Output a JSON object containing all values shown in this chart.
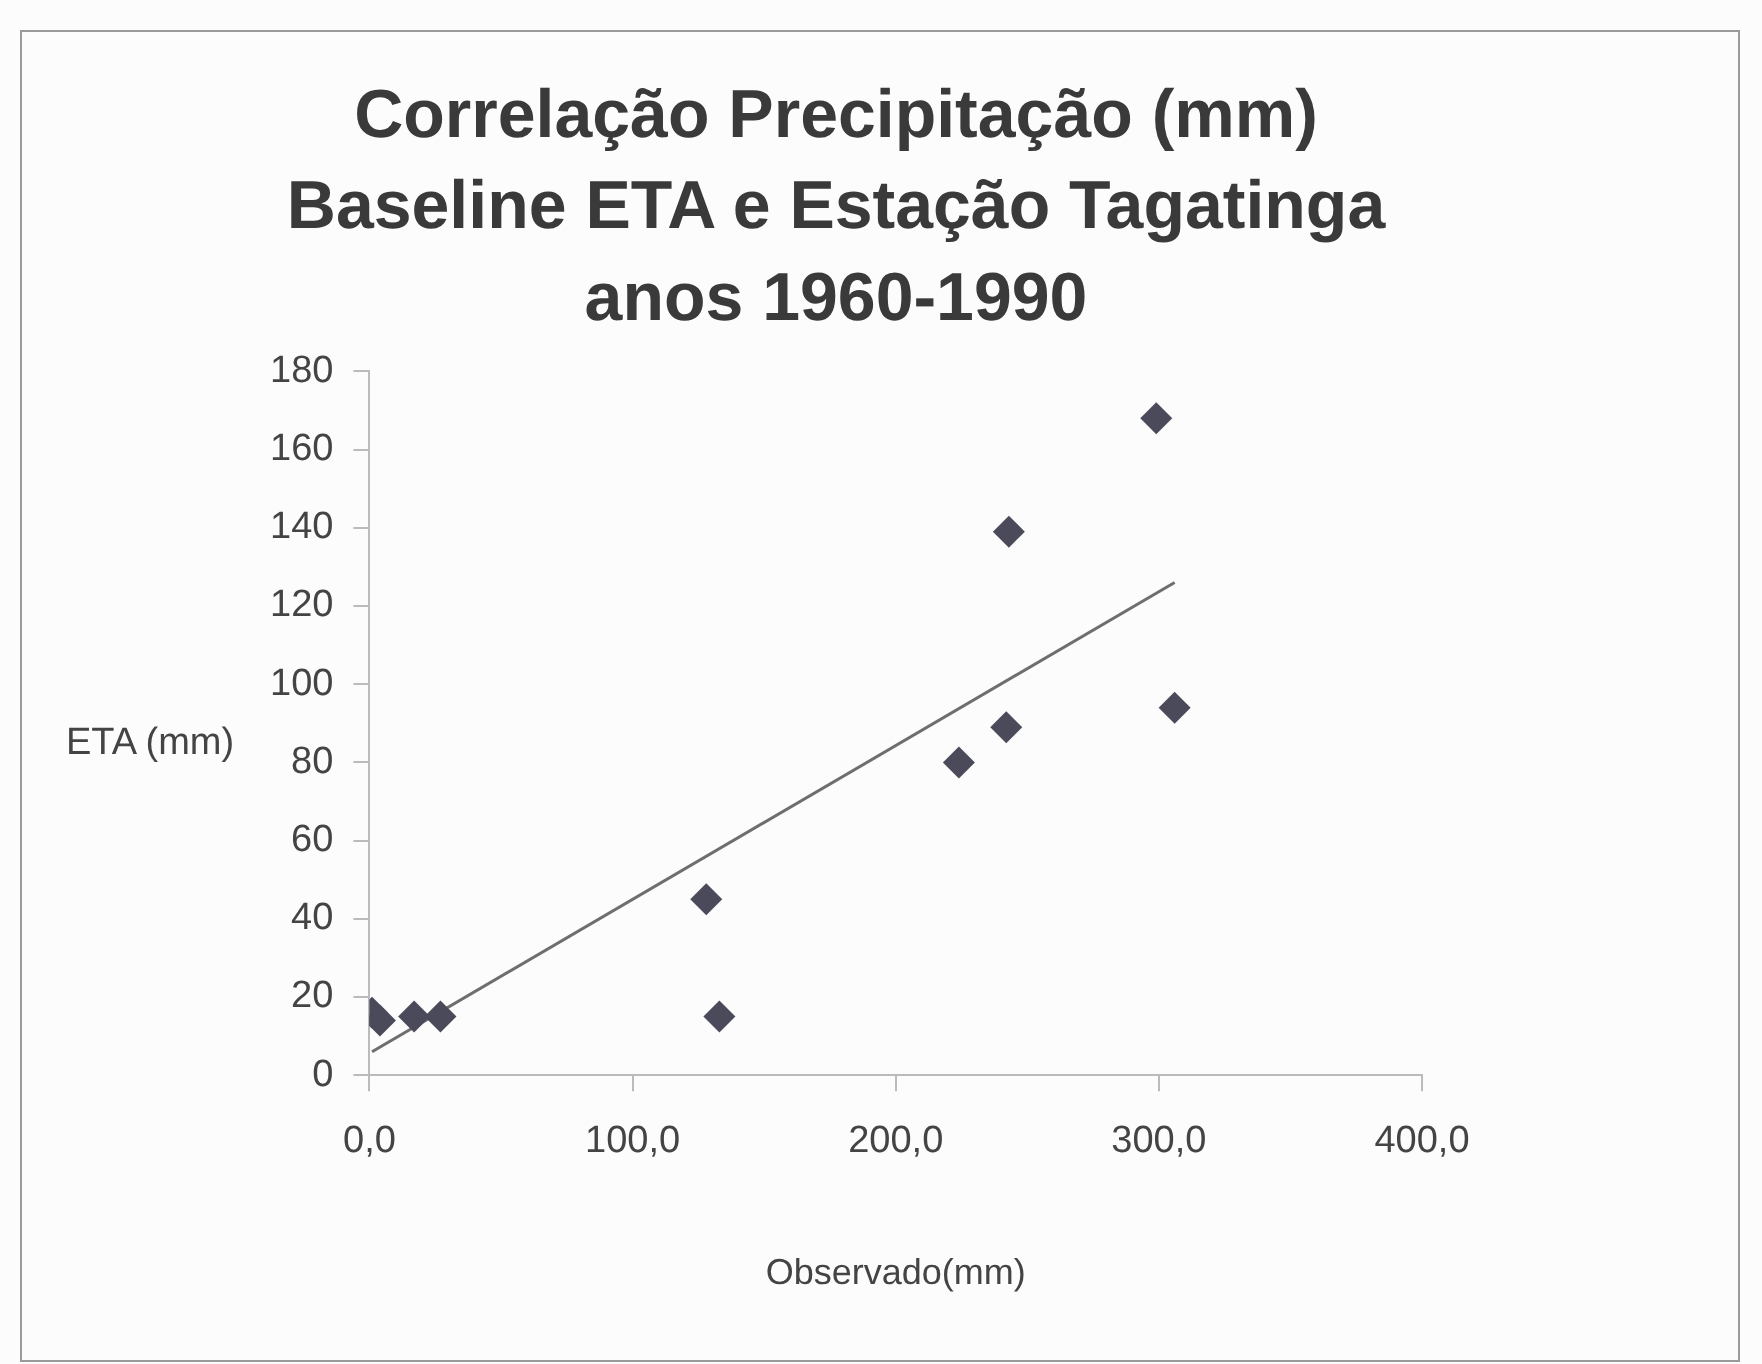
{
  "chart_data": {
    "type": "scatter",
    "title": "Correlação Precipitação (mm)\nBaseline ETA e Estação Tagatinga\nanos 1960-1990",
    "xlabel": "Observado(mm)",
    "ylabel": "ETA (mm)",
    "series": [
      {
        "color": "#4a4a5a",
        "x": [
          1,
          4,
          17,
          27,
          128,
          133,
          224,
          242,
          243,
          299,
          306
        ],
        "values": [
          16,
          14,
          15,
          15,
          45,
          15,
          80,
          89,
          139,
          168,
          94
        ]
      },
      {
        "type": "line",
        "color": "#6e6e6e",
        "marker": "none",
        "x": [
          1,
          306
        ],
        "values": [
          6,
          126
        ]
      }
    ],
    "marker": "diamond",
    "grid": false,
    "legend": false,
    "xlim": [
      0,
      400
    ],
    "xticks": [
      {
        "value": 0,
        "label": "0,0"
      },
      {
        "value": 100,
        "label": "100,0"
      },
      {
        "value": 200,
        "label": "200,0"
      },
      {
        "value": 300,
        "label": "300,0"
      },
      {
        "value": 400,
        "label": "400,0"
      }
    ],
    "ylim": [
      0,
      180
    ],
    "yticks": [
      0,
      20,
      40,
      60,
      80,
      100,
      120,
      140,
      160,
      180
    ]
  }
}
